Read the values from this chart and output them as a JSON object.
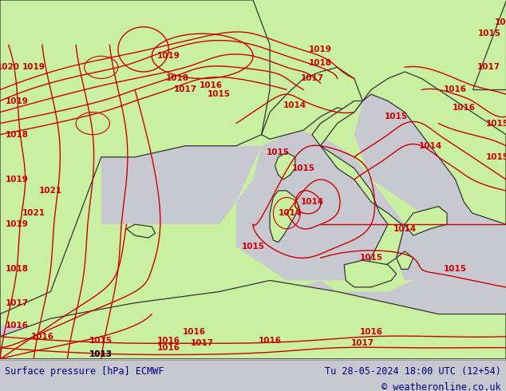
{
  "title_left": "Surface pressure [hPa] ECMWF",
  "title_right": "Tu 28-05-2024 18:00 UTC (12+54)",
  "copyright": "© weatheronline.co.uk",
  "land_color": "#c8f0a0",
  "sea_color": "#c8c8d0",
  "border_color": "#333333",
  "gray_border_color": "#999999",
  "contour_red": "#cc0000",
  "contour_black": "#000000",
  "label_red": "#cc0000",
  "label_black": "#000000",
  "label_blue": "#0000cc",
  "footer_bg": "#e0e0e0",
  "footer_text": "#000080",
  "fig_bg": "#c8c8d0",
  "figsize": [
    6.34,
    4.9
  ],
  "dpi": 100
}
